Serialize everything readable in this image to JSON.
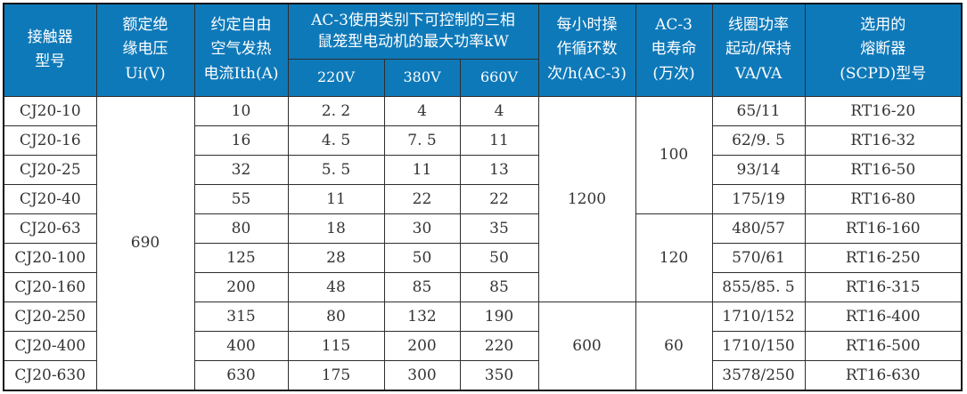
{
  "theme": {
    "header_bg": "#0e79b9",
    "header_text": "#ffffff",
    "body_text": "#333333",
    "border": "#2e2e2e"
  },
  "header": {
    "model": "接触器\n型号",
    "ui": "额定绝\n缘电压\nUi(V)",
    "ith": "约定自由\n空气发热\n电流Ith(A)",
    "ac3_group": "AC-3使用类别下可控制的三相\n鼠笼型电动机的最大功率kW",
    "v220": "220V",
    "v380": "380V",
    "v660": "660V",
    "cycles": "每小时操\n作循环数\n次/h(AC-3)",
    "life": "AC-3\n电寿命\n(万次)",
    "coil": "线圈功率\n起动/保持\nVA/VA",
    "fuse": "选用的\n熔断器\n(SCPD)型号"
  },
  "rows": [
    {
      "model": "CJ20-10",
      "ith": "10",
      "kw220": "2. 2",
      "kw380": "4",
      "kw660": "4",
      "coil": "65/11",
      "fuse": "RT16-20"
    },
    {
      "model": "CJ20-16",
      "ith": "16",
      "kw220": "4. 5",
      "kw380": "7. 5",
      "kw660": "11",
      "coil": "62/9. 5",
      "fuse": "RT16-32"
    },
    {
      "model": "CJ20-25",
      "ith": "32",
      "kw220": "5. 5",
      "kw380": "11",
      "kw660": "13",
      "coil": "93/14",
      "fuse": "RT16-50"
    },
    {
      "model": "CJ20-40",
      "ith": "55",
      "kw220": "11",
      "kw380": "22",
      "kw660": "22",
      "coil": "175/19",
      "fuse": "RT16-80"
    },
    {
      "model": "CJ20-63",
      "ith": "80",
      "kw220": "18",
      "kw380": "30",
      "kw660": "35",
      "coil": "480/57",
      "fuse": "RT16-160"
    },
    {
      "model": "CJ20-100",
      "ith": "125",
      "kw220": "28",
      "kw380": "50",
      "kw660": "50",
      "coil": "570/61",
      "fuse": "RT16-250"
    },
    {
      "model": "CJ20-160",
      "ith": "200",
      "kw220": "48",
      "kw380": "85",
      "kw660": "85",
      "coil": "855/85. 5",
      "fuse": "RT16-315"
    },
    {
      "model": "CJ20-250",
      "ith": "315",
      "kw220": "80",
      "kw380": "132",
      "kw660": "190",
      "coil": "1710/152",
      "fuse": "RT16-400"
    },
    {
      "model": "CJ20-400",
      "ith": "400",
      "kw220": "115",
      "kw380": "200",
      "kw660": "220",
      "coil": "1710/150",
      "fuse": "RT16-500"
    },
    {
      "model": "CJ20-630",
      "ith": "630",
      "kw220": "175",
      "kw380": "300",
      "kw660": "350",
      "coil": "3578/250",
      "fuse": "RT16-630"
    }
  ],
  "merged": {
    "ui": "690",
    "cycles": [
      {
        "value": "1200",
        "rows": 7
      },
      {
        "value": "600",
        "rows": 3
      }
    ],
    "life": [
      {
        "value": "100",
        "rows": 4
      },
      {
        "value": "120",
        "rows": 3
      },
      {
        "value": "60",
        "rows": 3
      }
    ]
  }
}
